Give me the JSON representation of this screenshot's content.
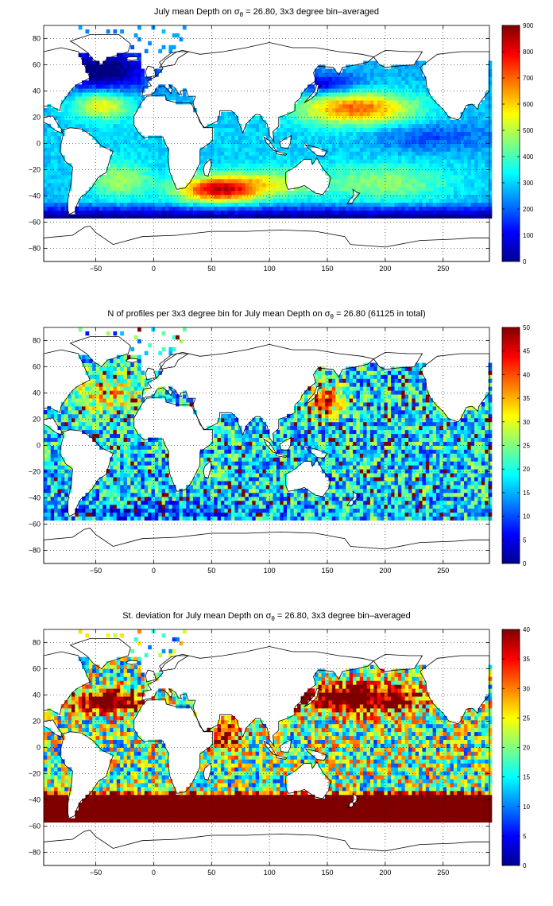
{
  "figure": {
    "background": "#ffffff"
  },
  "chart_data": [
    {
      "type": "heatmap",
      "title": "July mean Depth on σθ = 26.80, 3x3 degree bin–averaged",
      "title_main": "July mean Depth on σ",
      "title_sub": "θ",
      "title_rest": " = 26.80, 3x3 degree bin–averaged",
      "xlim": [
        -95,
        290
      ],
      "ylim": [
        -90,
        90
      ],
      "xticks": [
        -50,
        0,
        50,
        100,
        150,
        200,
        250
      ],
      "yticks": [
        -80,
        -60,
        -40,
        -20,
        0,
        20,
        40,
        60,
        80
      ],
      "grid": true,
      "colormap": "jet",
      "clim": [
        0,
        900
      ],
      "colorbar_ticks": [
        0,
        100,
        200,
        300,
        400,
        500,
        600,
        700,
        800,
        900
      ],
      "field": "depth"
    },
    {
      "type": "heatmap",
      "title": "N of profiles per 3x3 degree bin for July mean Depth on σθ = 26.80 (61125 in total)",
      "title_main": "N of profiles per 3x3 degree bin for July mean Depth on σ",
      "title_sub": "θ",
      "title_rest": " = 26.80 (61125 in total)",
      "xlim": [
        -95,
        290
      ],
      "ylim": [
        -90,
        90
      ],
      "xticks": [
        -50,
        0,
        50,
        100,
        150,
        200,
        250
      ],
      "yticks": [
        -80,
        -60,
        -40,
        -20,
        0,
        20,
        40,
        60,
        80
      ],
      "grid": true,
      "colormap": "jet",
      "clim": [
        0,
        50
      ],
      "colorbar_ticks": [
        0,
        5,
        10,
        15,
        20,
        25,
        30,
        35,
        40,
        45,
        50
      ],
      "field": "count"
    },
    {
      "type": "heatmap",
      "title": "St. deviation for July mean Depth on σθ = 26.80, 3x3 degree bin–averaged",
      "title_main": "St. deviation for July mean Depth on σ",
      "title_sub": "θ",
      "title_rest": " = 26.80, 3x3 degree bin–averaged",
      "xlim": [
        -95,
        290
      ],
      "ylim": [
        -90,
        90
      ],
      "xticks": [
        -50,
        0,
        50,
        100,
        150,
        200,
        250
      ],
      "yticks": [
        -80,
        -60,
        -40,
        -20,
        0,
        20,
        40,
        60,
        80
      ],
      "grid": true,
      "colormap": "jet",
      "clim": [
        0,
        40
      ],
      "colorbar_ticks": [
        0,
        5,
        10,
        15,
        20,
        25,
        30,
        35,
        40
      ],
      "field": "std"
    }
  ]
}
